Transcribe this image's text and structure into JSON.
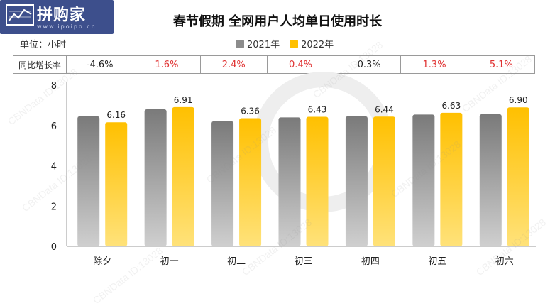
{
  "logo": {
    "text": "拼购家",
    "url": "www.ipoipo.cn"
  },
  "unit_label": "单位：小时",
  "watermark": "CBNData ID:13028",
  "colors": {
    "series_2021": "#8c8c8c",
    "series_2022": "#ffc000",
    "negative": "#222222",
    "positive": "#e03131"
  },
  "yoy": {
    "label": "同比增长率",
    "values": [
      "-4.6%",
      "1.6%",
      "2.4%",
      "0.4%",
      "-0.3%",
      "1.3%",
      "5.1%"
    ]
  },
  "chart_data": {
    "type": "bar",
    "title": "春节假期 全网用户人均单日使用时长",
    "categories": [
      "除夕",
      "初一",
      "初二",
      "初三",
      "初四",
      "初五",
      "初六"
    ],
    "series": [
      {
        "name": "2021年",
        "values": [
          6.46,
          6.8,
          6.21,
          6.4,
          6.46,
          6.54,
          6.56
        ]
      },
      {
        "name": "2022年",
        "values": [
          6.16,
          6.91,
          6.36,
          6.43,
          6.44,
          6.63,
          6.9
        ],
        "labels": [
          "6.16",
          "6.91",
          "6.36",
          "6.43",
          "6.44",
          "6.63",
          "6.90"
        ]
      }
    ],
    "yticks": [
      "0",
      "2",
      "4",
      "6",
      "8"
    ],
    "ylim": [
      0,
      8
    ],
    "grid": false,
    "legend": "top-center"
  }
}
